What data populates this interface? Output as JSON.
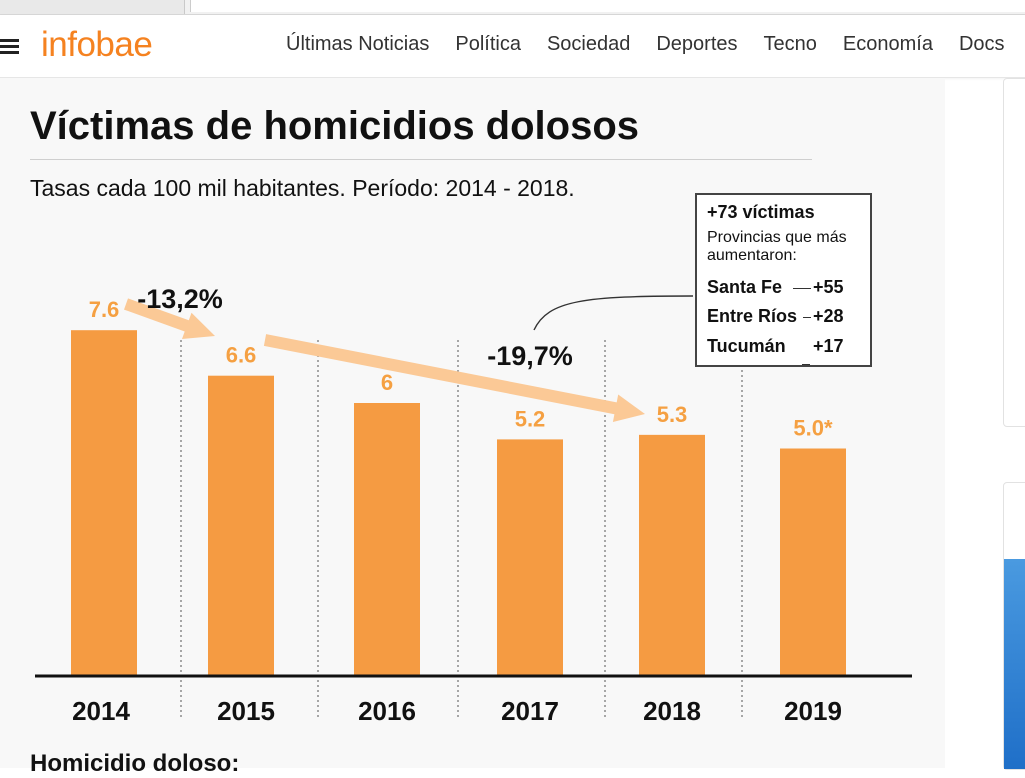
{
  "header": {
    "logo": "infobae",
    "nav": [
      "Últimas Noticias",
      "Política",
      "Sociedad",
      "Deportes",
      "Tecno",
      "Economía",
      "Docs"
    ]
  },
  "infographic": {
    "title": "Víctimas de homicidios dolosos",
    "subtitle": "Tasas cada 100 mil habitantes. Período: 2014 - 2018.",
    "callout": {
      "head": "+73 víctimas",
      "sub": "Provincias que más aumentaron:",
      "rows": [
        {
          "province": "Santa Fe",
          "value": "+55"
        },
        {
          "province": "Entre Ríos",
          "value": "+28"
        },
        {
          "province": "Tucumán",
          "value": "+17"
        }
      ]
    },
    "footer": "Homicidio doloso:"
  },
  "colors": {
    "bar": "#f59b42",
    "label": "#f5a042",
    "arrow": "#fbc996",
    "accent": "#f58220"
  },
  "chart_data": {
    "type": "bar",
    "categories": [
      "2014",
      "2015",
      "2016",
      "2017",
      "2018",
      "2019"
    ],
    "values": [
      7.6,
      6.6,
      6,
      5.2,
      5.3,
      5.0
    ],
    "value_labels": [
      "7.6",
      "6.6",
      "6",
      "5.2",
      "5.3",
      "5.0*"
    ],
    "annotations": [
      {
        "text": "-13,2%",
        "from": "2014",
        "to": "2015"
      },
      {
        "text": "-19,7%",
        "from": "2015",
        "to": "2018"
      }
    ],
    "grid": false,
    "legend": "none"
  }
}
